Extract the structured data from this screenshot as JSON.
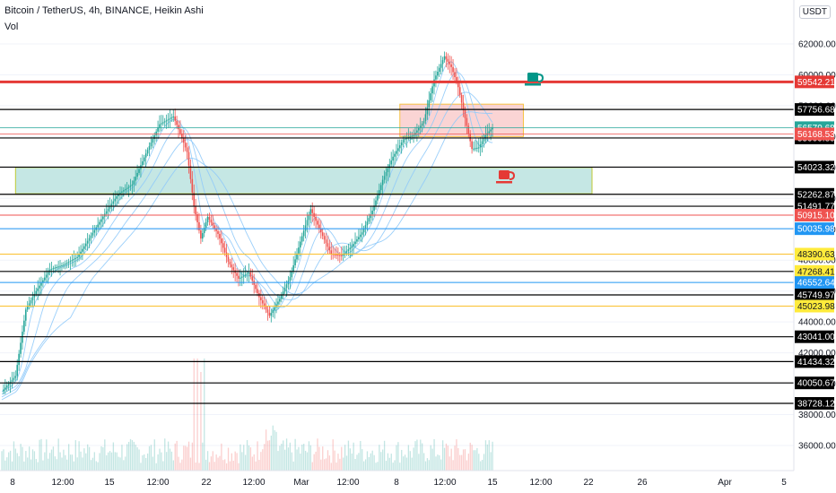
{
  "header": {
    "title": "Bitcoin / TetherUS, 4h, BINANCE, Heikin Ashi",
    "indicator": "Vol",
    "currency": "USDT"
  },
  "chart_data": {
    "type": "line",
    "chart_style": "heikin-ashi candlestick with volume and moving averages",
    "ylim": [
      35000,
      64000
    ],
    "y_ticks": [
      36000,
      38000,
      40000,
      42000,
      44000,
      46000,
      48000,
      50000,
      52000,
      54000,
      56000,
      58000,
      60000,
      62000
    ],
    "x_ticks": [
      "8",
      "12:00",
      "15",
      "12:00",
      "22",
      "12:00",
      "Mar",
      "12:00",
      "8",
      "12:00",
      "15",
      "12:00",
      "22",
      "26",
      "Apr",
      "5"
    ],
    "price_series": [
      {
        "i": 0,
        "c": 39500
      },
      {
        "i": 8,
        "c": 40500
      },
      {
        "i": 14,
        "c": 44800
      },
      {
        "i": 20,
        "c": 46000
      },
      {
        "i": 28,
        "c": 47400
      },
      {
        "i": 36,
        "c": 47700
      },
      {
        "i": 44,
        "c": 48200
      },
      {
        "i": 52,
        "c": 49600
      },
      {
        "i": 60,
        "c": 51000
      },
      {
        "i": 68,
        "c": 52300
      },
      {
        "i": 76,
        "c": 52900
      },
      {
        "i": 84,
        "c": 54900
      },
      {
        "i": 92,
        "c": 56800
      },
      {
        "i": 100,
        "c": 57300
      },
      {
        "i": 104,
        "c": 56200
      },
      {
        "i": 108,
        "c": 55000
      },
      {
        "i": 112,
        "c": 51500
      },
      {
        "i": 116,
        "c": 49400
      },
      {
        "i": 120,
        "c": 50800
      },
      {
        "i": 126,
        "c": 49700
      },
      {
        "i": 132,
        "c": 47900
      },
      {
        "i": 138,
        "c": 46800
      },
      {
        "i": 144,
        "c": 47200
      },
      {
        "i": 150,
        "c": 45600
      },
      {
        "i": 156,
        "c": 44400
      },
      {
        "i": 162,
        "c": 45500
      },
      {
        "i": 168,
        "c": 46900
      },
      {
        "i": 174,
        "c": 49200
      },
      {
        "i": 180,
        "c": 51300
      },
      {
        "i": 186,
        "c": 49800
      },
      {
        "i": 192,
        "c": 48400
      },
      {
        "i": 198,
        "c": 48300
      },
      {
        "i": 204,
        "c": 48900
      },
      {
        "i": 210,
        "c": 49800
      },
      {
        "i": 216,
        "c": 51200
      },
      {
        "i": 222,
        "c": 53200
      },
      {
        "i": 228,
        "c": 54700
      },
      {
        "i": 234,
        "c": 55800
      },
      {
        "i": 240,
        "c": 56100
      },
      {
        "i": 246,
        "c": 57000
      },
      {
        "i": 252,
        "c": 59700
      },
      {
        "i": 258,
        "c": 61200
      },
      {
        "i": 262,
        "c": 60500
      },
      {
        "i": 266,
        "c": 59200
      },
      {
        "i": 270,
        "c": 57200
      },
      {
        "i": 274,
        "c": 55200
      },
      {
        "i": 278,
        "c": 55300
      },
      {
        "i": 282,
        "c": 56100
      },
      {
        "i": 286,
        "c": 56580
      }
    ],
    "horizontal_levels": [
      {
        "price": 59542.21,
        "color": "#e53935",
        "label_bg": "#e53935",
        "label_fg": "#ffffff",
        "width": 3
      },
      {
        "price": 57756.68,
        "color": "#000000",
        "label_bg": "#000000",
        "label_fg": "#ffffff",
        "width": 1.2
      },
      {
        "price": 56579.68,
        "color": "#26a69a",
        "label_bg": "#26a69a",
        "label_fg": "#ffffff",
        "width": 0.8
      },
      {
        "price": 55909.89,
        "color": "#000000",
        "label_bg": "#000000",
        "label_fg": "#ffffff",
        "width": 1.2
      },
      {
        "price": 56168.53,
        "color": "#ef5350",
        "label_bg": "#ef5350",
        "label_fg": "#ffffff",
        "width": 0.8
      },
      {
        "price": 54023.32,
        "color": "#000000",
        "label_bg": "#000000",
        "label_fg": "#ffffff",
        "width": 1.2
      },
      {
        "price": 52262.87,
        "color": "#000000",
        "label_bg": "#000000",
        "label_fg": "#ffffff",
        "width": 1.2
      },
      {
        "price": 51491.77,
        "color": "#000000",
        "label_bg": "#000000",
        "label_fg": "#ffffff",
        "width": 1.2
      },
      {
        "price": 50915.1,
        "color": "#ef5350",
        "label_bg": "#ef5350",
        "label_fg": "#ffffff",
        "width": 1
      },
      {
        "price": 50035.98,
        "color": "#2196f3",
        "label_bg": "#2196f3",
        "label_fg": "#ffffff",
        "width": 1
      },
      {
        "price": 48390.63,
        "color": "#fbc02d",
        "label_bg": "#ffeb3b",
        "label_fg": "#131722",
        "width": 1
      },
      {
        "price": 47268.41,
        "color": "#000000",
        "label_bg": "#ffeb3b",
        "label_fg": "#131722",
        "width": 1.2
      },
      {
        "price": 46552.64,
        "color": "#2196f3",
        "label_bg": "#2196f3",
        "label_fg": "#ffffff",
        "width": 1
      },
      {
        "price": 45749.97,
        "color": "#000000",
        "label_bg": "#000000",
        "label_fg": "#ffffff",
        "width": 1.2
      },
      {
        "price": 45023.98,
        "color": "#fbc02d",
        "label_bg": "#ffeb3b",
        "label_fg": "#131722",
        "width": 1
      },
      {
        "price": 43041.0,
        "color": "#000000",
        "label_bg": "#000000",
        "label_fg": "#ffffff",
        "width": 1.2
      },
      {
        "price": 41434.32,
        "color": "#000000",
        "label_bg": "#000000",
        "label_fg": "#ffffff",
        "width": 1.2
      },
      {
        "price": 40050.67,
        "color": "#000000",
        "label_bg": "#000000",
        "label_fg": "#ffffff",
        "width": 1.2
      },
      {
        "price": 38728.12,
        "color": "#000000",
        "label_bg": "#000000",
        "label_fg": "#ffffff",
        "width": 1.2
      }
    ],
    "zones": [
      {
        "name": "resistance-zone",
        "from": 56000,
        "to": 58100,
        "fill": "#f8c6c6",
        "stroke": "#f6c244",
        "i_from": 232,
        "i_to": 304
      },
      {
        "name": "support-zone",
        "from": 52300,
        "to": 54000,
        "fill": "#b2dfdb",
        "stroke": "#c0ca33",
        "i_from": 8,
        "i_to": 344
      }
    ],
    "colors": {
      "up": "#26a69a",
      "down": "#ef5350",
      "ma": "#90caf9",
      "grid": "#f0f3fa"
    }
  }
}
